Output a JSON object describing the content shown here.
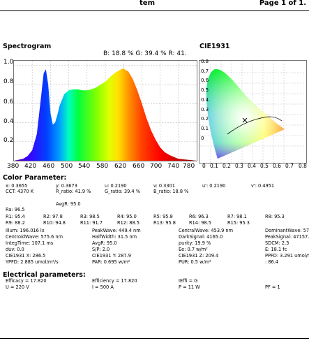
{
  "header": {
    "system": "tem",
    "page": "Page 1 of 1."
  },
  "spectrogram": {
    "title": "Spectrogram",
    "ratio_text": "B: 18.8 %  G: 39.4 %  R: 41.",
    "y_ticks": [
      "1.0",
      "0.8",
      "0.6",
      "0.4",
      "0.2"
    ],
    "x_ticks": [
      "380",
      "420",
      "460",
      "500",
      "540",
      "580",
      "620",
      "660",
      "700",
      "740",
      "780"
    ]
  },
  "cie": {
    "title": "CIE1931",
    "y_ticks": [
      "0.8",
      "0.7",
      "0.6",
      "0.5",
      "0.4",
      "0.3",
      "0.2",
      "0.1",
      "0"
    ],
    "x_ticks": [
      "0",
      "0.1",
      "0.2",
      "0.3",
      "0.4",
      "0.5",
      "0.6",
      "0.7",
      "0.8"
    ]
  },
  "color_param_title": "Color Parameter:",
  "rows": {
    "r1": [
      "x: 0.3655",
      "y: 0.3673",
      "u: 0.2190",
      "v: 0.3301",
      "u': 0.2190",
      "v': 0.4951"
    ],
    "r2": [
      "CCT: 4370 K",
      "R_ratio: 41.9 %",
      "G_ratio: 39.4 %",
      "B_ratio: 18.8 %"
    ],
    "r3": [
      "AvgR: 95.0"
    ],
    "r4": [
      "Ra: 96.5"
    ],
    "r5": [
      "R1: 95.4",
      "R2: 97.8",
      "R3: 98.5",
      "R4: 95.0",
      "R5: 95.8",
      "R6: 96.3",
      "R7: 98.1",
      "R8: 95.3"
    ],
    "r6": [
      "R9: 88.2",
      "R10: 94.8",
      "R11: 91.7",
      "R12: 88.5",
      "R13: 95.8",
      "R14: 98.5",
      "R15: 95.3"
    ],
    "r7": [
      "Illum: 196.016 lx",
      "PeakWave: 449.4 nm",
      "CentralWave: 453.9 nm",
      "DominantWave: 57"
    ],
    "r8": [
      "CentroidWave: 575.6 nm",
      "HalfWidth: 31.5 nm",
      "DarkSignal: 4165.0",
      "PeakSignal: 47157."
    ],
    "r9": [
      "IntegTime: 107.1 ms",
      "AvgR: 95.0",
      "purity: 19.9 %",
      "SDCM: 2.3"
    ],
    "r10": [
      "duv: 0.0",
      "S/P: 2.0",
      "Ee: 0.7 w/m²",
      "E: 18.1 fc"
    ],
    "r11": [
      "CIE1931 X: 286.5",
      "CIE1931 Y: 287.9",
      "CIE1931 Z: 209.4",
      "PPFD: 3.291 umol/m²"
    ],
    "r12": [
      "YPFD: 2.885 umol/m²/s",
      "PAR: 0.695 w/m²",
      "PUR: 0.5 w/m²",
      ": 86.4"
    ]
  },
  "electrical": {
    "title": "Electrical parameters:",
    "r1": [
      "Efficacy = 17.820",
      "Efficiency = 17.820",
      "IEffi = G"
    ],
    "r2": [
      "U = 220 V",
      "I = 500 A",
      "P = 11 W",
      "PF = 1"
    ]
  },
  "chart_data": {
    "type": "area",
    "title": "Spectrogram",
    "xlim": [
      380,
      780
    ],
    "ylim": [
      0,
      1.05
    ],
    "x": [
      380,
      390,
      400,
      410,
      420,
      430,
      440,
      445,
      450,
      455,
      460,
      465,
      470,
      475,
      480,
      490,
      500,
      510,
      520,
      530,
      540,
      550,
      560,
      570,
      580,
      590,
      600,
      610,
      620,
      625,
      630,
      640,
      650,
      660,
      670,
      680,
      690,
      700,
      710,
      720,
      730,
      740,
      750,
      760,
      770,
      780
    ],
    "values": [
      0.0,
      0.01,
      0.02,
      0.05,
      0.11,
      0.28,
      0.7,
      0.92,
      0.96,
      0.8,
      0.5,
      0.38,
      0.4,
      0.48,
      0.58,
      0.7,
      0.74,
      0.75,
      0.75,
      0.74,
      0.74,
      0.75,
      0.77,
      0.8,
      0.83,
      0.88,
      0.92,
      0.95,
      0.97,
      0.95,
      0.94,
      0.86,
      0.74,
      0.6,
      0.45,
      0.32,
      0.22,
      0.14,
      0.09,
      0.06,
      0.04,
      0.02,
      0.015,
      0.01,
      0.005,
      0.0
    ]
  }
}
